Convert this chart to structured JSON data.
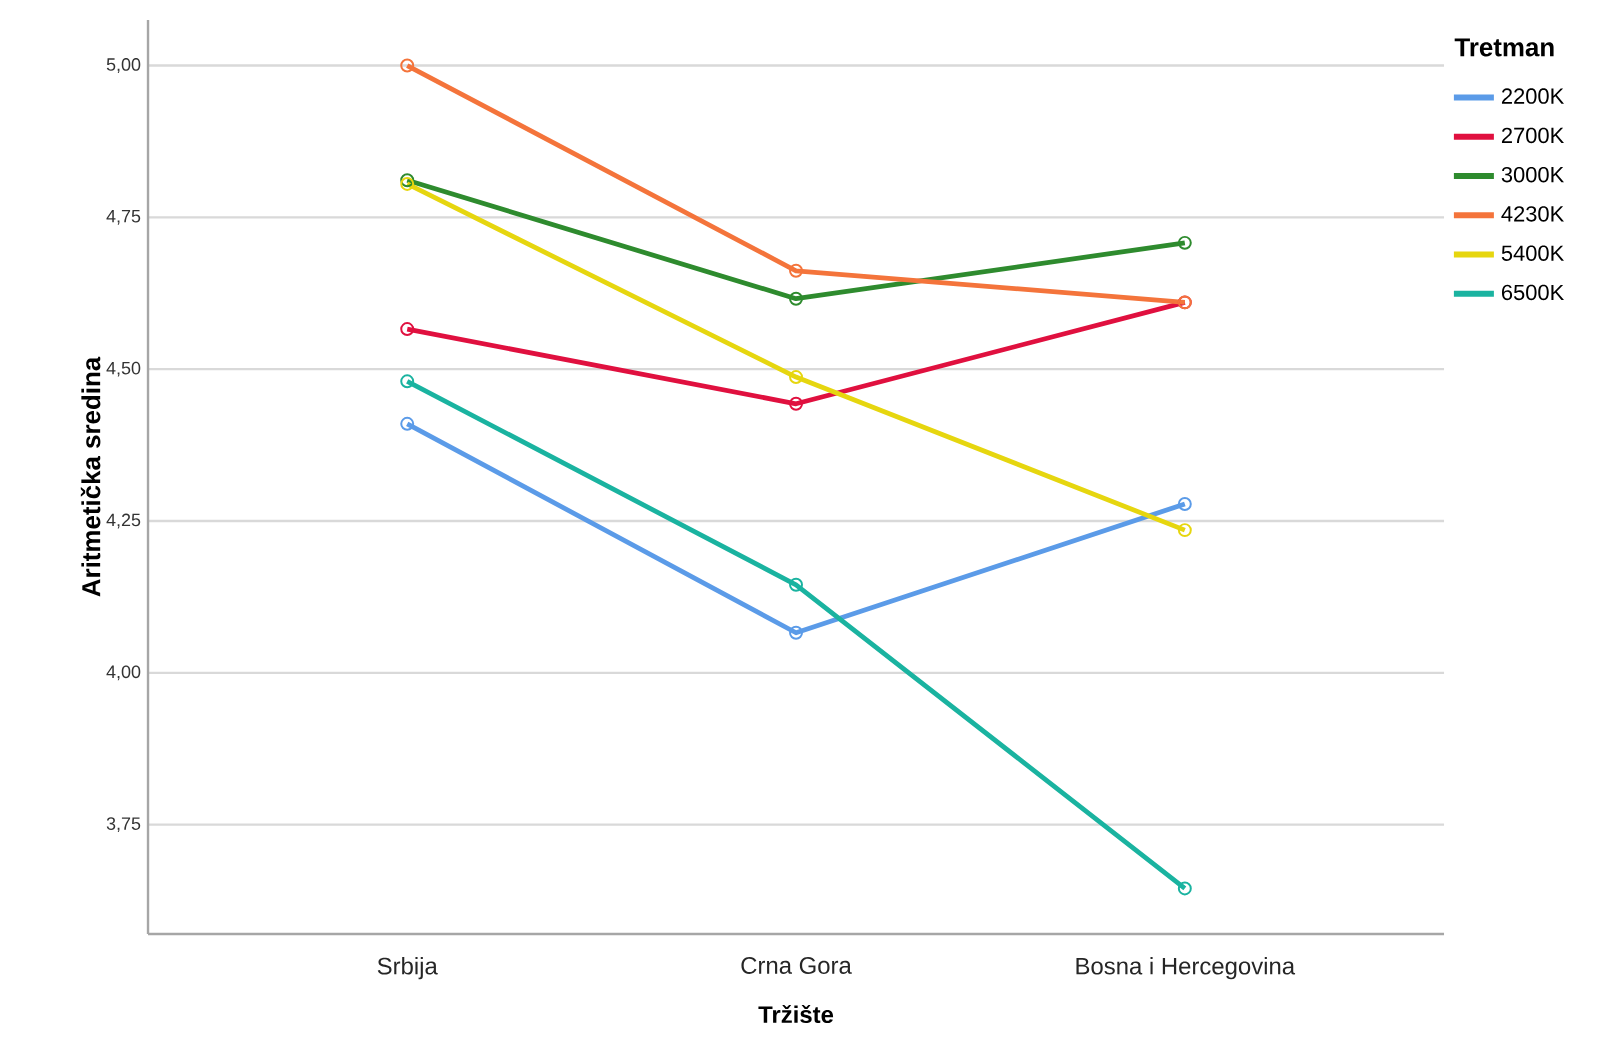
{
  "chart_data": {
    "type": "line",
    "xlabel": "Tržište",
    "ylabel": "Aritmetička sredina",
    "legend_title": "Tretman",
    "categories": [
      "Srbija",
      "Crna Gora",
      "Bosna i Hercegovina"
    ],
    "series": [
      {
        "name": "2200K",
        "color": "#5b9be8",
        "values": [
          4.41,
          4.066,
          4.278
        ]
      },
      {
        "name": "2700K",
        "color": "#e0103f",
        "values": [
          4.566,
          4.443,
          4.61
        ]
      },
      {
        "name": "3000K",
        "color": "#2e8b2e",
        "values": [
          4.811,
          4.616,
          4.708
        ]
      },
      {
        "name": "4230K",
        "color": "#f4743b",
        "values": [
          5.0,
          4.662,
          4.61
        ]
      },
      {
        "name": "5400K",
        "color": "#e6d60f",
        "values": [
          4.805,
          4.487,
          4.235
        ]
      },
      {
        "name": "6500K",
        "color": "#1ab3a0",
        "values": [
          4.48,
          4.145,
          3.645
        ]
      }
    ],
    "ylim": [
      3.57,
      5.075
    ],
    "yticks": [
      {
        "value": 3.75,
        "label": "3,75"
      },
      {
        "value": 4.0,
        "label": "4,00"
      },
      {
        "value": 4.25,
        "label": "4,25"
      },
      {
        "value": 4.5,
        "label": "4,50"
      },
      {
        "value": 4.75,
        "label": "4,75"
      },
      {
        "value": 5.0,
        "label": "5,00"
      }
    ],
    "grid": "y",
    "legend": "top right",
    "marker": "circle",
    "line_style": "solid"
  }
}
